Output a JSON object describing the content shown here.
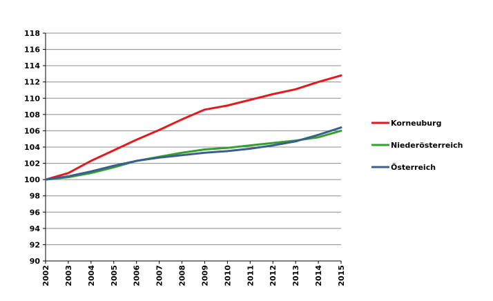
{
  "chart_data": {
    "type": "line",
    "title": "",
    "xlabel": "",
    "ylabel": "",
    "x": [
      "2002",
      "2003",
      "2004",
      "2005",
      "2006",
      "2007",
      "2008",
      "2009",
      "2010",
      "2011",
      "2012",
      "2013",
      "2014",
      "2015"
    ],
    "ylim": [
      90,
      118
    ],
    "yticks": [
      "90",
      "92",
      "94",
      "96",
      "98",
      "100",
      "102",
      "104",
      "106",
      "108",
      "110",
      "112",
      "114",
      "116",
      "118"
    ],
    "grid": true,
    "legend_position": "right",
    "series": [
      {
        "name": "Korneuburg",
        "color": "#e31a1c",
        "values": [
          100.0,
          100.8,
          102.3,
          103.6,
          104.9,
          106.1,
          107.4,
          108.6,
          109.1,
          109.8,
          110.5,
          111.1,
          112.0,
          112.8
        ]
      },
      {
        "name": "Niederösterreich",
        "color": "#33a02c",
        "values": [
          100.0,
          100.3,
          100.8,
          101.5,
          102.3,
          102.8,
          103.3,
          103.7,
          103.9,
          104.2,
          104.5,
          104.8,
          105.2,
          106.0
        ]
      },
      {
        "name": "Österreich",
        "color": "#3a5f8f",
        "values": [
          100.0,
          100.4,
          101.0,
          101.7,
          102.3,
          102.7,
          103.0,
          103.3,
          103.5,
          103.8,
          104.2,
          104.7,
          105.5,
          106.4
        ]
      }
    ]
  }
}
